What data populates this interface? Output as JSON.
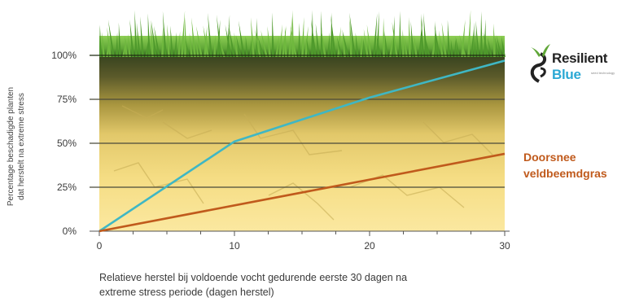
{
  "chart_data": {
    "type": "line",
    "ylabel_lines": [
      "Percentage beschadigde planten",
      "dat herstelt na extreme stress"
    ],
    "xlabel_lines": [
      "Relatieve herstel bij voldoende vocht gedurende eerste 30 dagen na",
      "extreme stress periode (dagen herstel)"
    ],
    "x_ticks": [
      "0",
      "10",
      "20",
      "30"
    ],
    "y_ticks": [
      "0%",
      "25%",
      "50%",
      "75%",
      "100%"
    ],
    "xlim": [
      0,
      30
    ],
    "ylim": [
      0,
      100
    ],
    "grid": true,
    "series": [
      {
        "name_lines": [
          "Resilient",
          "Blue"
        ],
        "color": "#3fb7c4",
        "x": [
          0,
          10,
          20,
          30
        ],
        "y": [
          0,
          51,
          76,
          97
        ]
      },
      {
        "name_lines": [
          "Doorsnee",
          "veldbeemdgras"
        ],
        "color": "#c05a1c",
        "x": [
          0,
          30
        ],
        "y": [
          0,
          44
        ]
      }
    ]
  },
  "logo": {
    "tagline": "seed technology",
    "blue_color": "#2aa8d4"
  },
  "colors": {
    "grass": "#5fa637",
    "soil_dark": "#3e4a22",
    "sand_light": "#fbe79a"
  }
}
